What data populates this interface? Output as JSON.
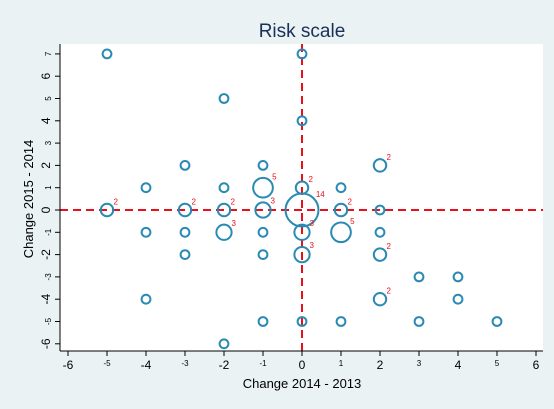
{
  "chart_data": {
    "type": "scatter",
    "title": "Risk scale",
    "xlabel": "Change 2014 - 2013",
    "ylabel": "Change 2015 - 2014",
    "xlim": [
      -6,
      6
    ],
    "ylim": [
      -6,
      7
    ],
    "x_ticks": [
      "-6",
      "-5",
      "-4",
      "-3",
      "-2",
      "-1",
      "0",
      "1",
      "2",
      "3",
      "4",
      "5",
      "6"
    ],
    "y_ticks": [
      "-6",
      "-5",
      "-4",
      "-3",
      "-2",
      "-1",
      "0",
      "1",
      "2",
      "3",
      "4",
      "5",
      "6",
      "7"
    ],
    "grid": false,
    "reference_lines": [
      {
        "axis": "x",
        "value": 0
      },
      {
        "axis": "y",
        "value": 0
      }
    ],
    "colors": {
      "marker": "#2a8ab3",
      "reference_line": "#e8101a",
      "count_label": "#e8101a",
      "background": "#eaf2f3",
      "title": "#1a2f5a"
    },
    "points": [
      {
        "x": -5,
        "y": 7,
        "n": 1
      },
      {
        "x": 0,
        "y": 7,
        "n": 1
      },
      {
        "x": -2,
        "y": 5,
        "n": 1
      },
      {
        "x": 0,
        "y": 4,
        "n": 1
      },
      {
        "x": -3,
        "y": 2,
        "n": 1
      },
      {
        "x": -1,
        "y": 2,
        "n": 1
      },
      {
        "x": 2,
        "y": 2,
        "n": 2
      },
      {
        "x": -4,
        "y": 1,
        "n": 1
      },
      {
        "x": -2,
        "y": 1,
        "n": 1
      },
      {
        "x": -1,
        "y": 1,
        "n": 5
      },
      {
        "x": 0,
        "y": 1,
        "n": 2
      },
      {
        "x": 1,
        "y": 1,
        "n": 1
      },
      {
        "x": -5,
        "y": 0,
        "n": 2
      },
      {
        "x": -3,
        "y": 0,
        "n": 2
      },
      {
        "x": -2,
        "y": 0,
        "n": 2
      },
      {
        "x": -1,
        "y": 0,
        "n": 3
      },
      {
        "x": 0,
        "y": 0,
        "n": 14
      },
      {
        "x": 1,
        "y": 0,
        "n": 2
      },
      {
        "x": 2,
        "y": 0,
        "n": 1
      },
      {
        "x": -4,
        "y": -1,
        "n": 1
      },
      {
        "x": -3,
        "y": -1,
        "n": 1
      },
      {
        "x": -2,
        "y": -1,
        "n": 3
      },
      {
        "x": -1,
        "y": -1,
        "n": 1
      },
      {
        "x": 0,
        "y": -1,
        "n": 3
      },
      {
        "x": 1,
        "y": -1,
        "n": 5
      },
      {
        "x": 2,
        "y": -1,
        "n": 1
      },
      {
        "x": -3,
        "y": -2,
        "n": 1
      },
      {
        "x": -1,
        "y": -2,
        "n": 1
      },
      {
        "x": 0,
        "y": -2,
        "n": 3
      },
      {
        "x": 2,
        "y": -2,
        "n": 2
      },
      {
        "x": 3,
        "y": -3,
        "n": 1
      },
      {
        "x": 4,
        "y": -3,
        "n": 1
      },
      {
        "x": -4,
        "y": -4,
        "n": 1
      },
      {
        "x": 2,
        "y": -4,
        "n": 2
      },
      {
        "x": 4,
        "y": -4,
        "n": 1
      },
      {
        "x": -1,
        "y": -5,
        "n": 1
      },
      {
        "x": 0,
        "y": -5,
        "n": 1
      },
      {
        "x": 1,
        "y": -5,
        "n": 1
      },
      {
        "x": 3,
        "y": -5,
        "n": 1
      },
      {
        "x": 5,
        "y": -5,
        "n": 1
      },
      {
        "x": -2,
        "y": -6,
        "n": 1
      }
    ]
  }
}
